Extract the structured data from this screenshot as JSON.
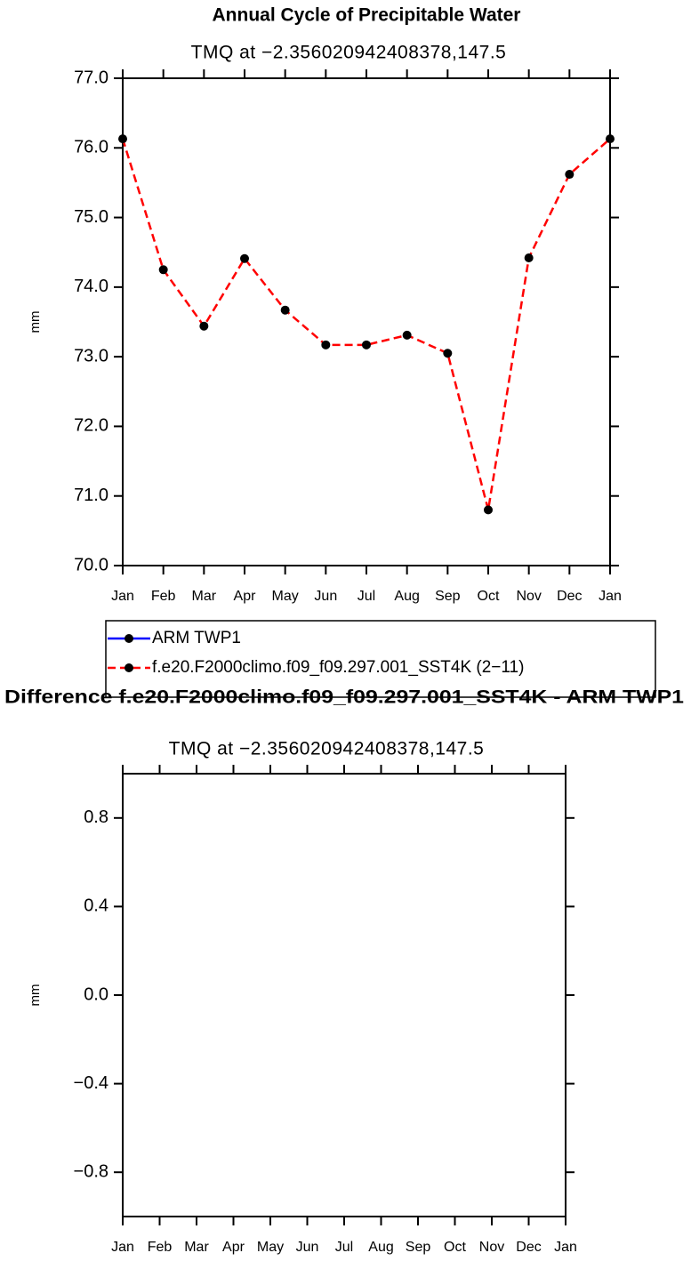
{
  "chart_data": [
    {
      "type": "line",
      "title": "Annual Cycle of Precipitable Water",
      "subtitle": "TMQ at −2.356020942408378,147.5",
      "ylabel": "mm",
      "categories": [
        "Jan",
        "Feb",
        "Mar",
        "Apr",
        "May",
        "Jun",
        "Jul",
        "Aug",
        "Sep",
        "Oct",
        "Nov",
        "Dec",
        "Jan"
      ],
      "series": [
        {
          "name": "ARM TWP1",
          "color": "#0000ff",
          "linestyle": "solid",
          "values": [
            null,
            null,
            null,
            null,
            null,
            null,
            null,
            null,
            null,
            null,
            null,
            null,
            null
          ]
        },
        {
          "name": "f.e20.F2000climo.f09_f09.297.001_SST4K (2−11)",
          "color": "#ff0000",
          "linestyle": "dashed",
          "values": [
            76.13,
            74.25,
            73.44,
            74.41,
            73.67,
            73.17,
            73.17,
            73.31,
            73.05,
            70.8,
            74.42,
            75.62,
            76.13
          ]
        }
      ],
      "marker_color": "#000000",
      "ylim": [
        70,
        77
      ],
      "yticks": [
        {
          "value": 70,
          "label": "70.0"
        },
        {
          "value": 71,
          "label": "71.0"
        },
        {
          "value": 72,
          "label": "72.0"
        },
        {
          "value": 73,
          "label": "73.0"
        },
        {
          "value": 74,
          "label": "74.0"
        },
        {
          "value": 75,
          "label": "75.0"
        },
        {
          "value": 76,
          "label": "76.0"
        },
        {
          "value": 77,
          "label": "77.0"
        }
      ],
      "grid": false,
      "legend": "bottom"
    },
    {
      "type": "line",
      "title": "Difference f.e20.F2000climo.f09_f09.297.001_SST4K - ARM TWP1",
      "subtitle": "TMQ at −2.356020942408378,147.5",
      "ylabel": "mm",
      "categories": [
        "Jan",
        "Feb",
        "Mar",
        "Apr",
        "May",
        "Jun",
        "Jul",
        "Aug",
        "Sep",
        "Oct",
        "Nov",
        "Dec",
        "Jan"
      ],
      "ylim": [
        -1,
        1
      ],
      "yticks": [
        {
          "value": -0.8,
          "label": "−0.8"
        },
        {
          "value": -0.4,
          "label": "−0.4"
        },
        {
          "value": 0,
          "label": "0.0"
        },
        0.4,
        0.8
      ],
      "grid": false
    }
  ]
}
